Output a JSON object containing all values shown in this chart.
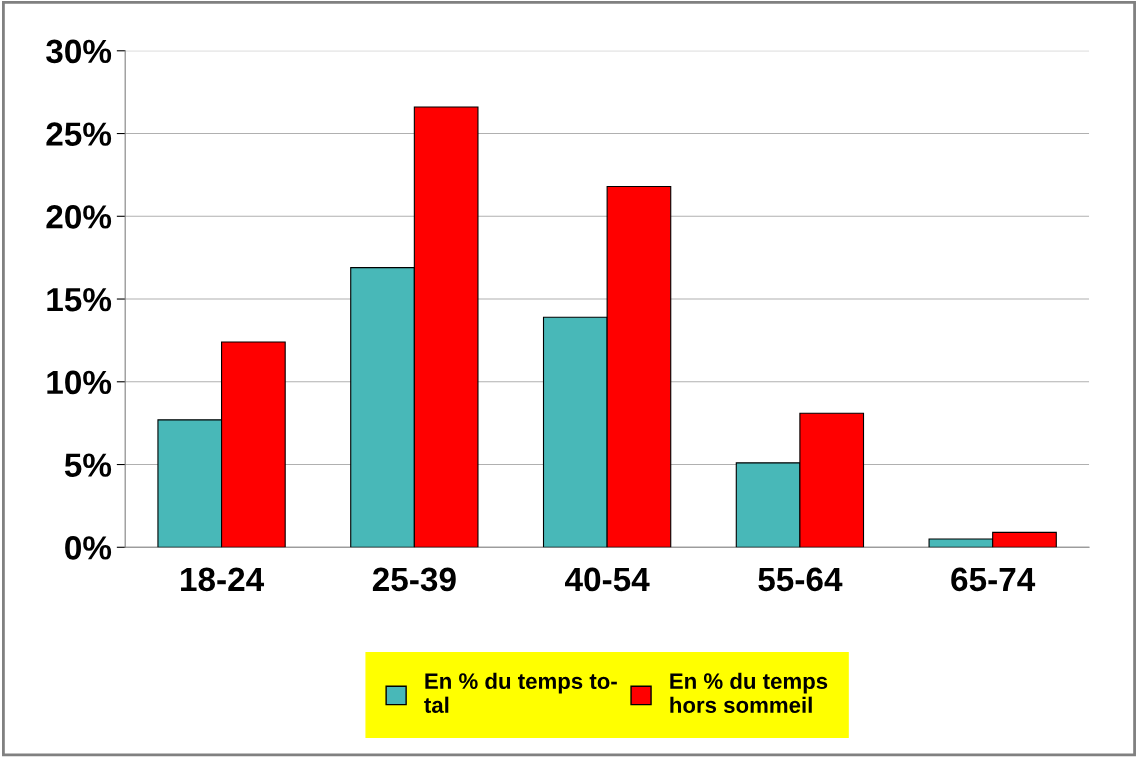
{
  "chart_data": {
    "type": "bar",
    "categories": [
      "18-24",
      "25-39",
      "40-54",
      "55-64",
      "65-74"
    ],
    "series": [
      {
        "name": "En % du temps to-\ntal",
        "color": "#48b8b8",
        "values": [
          7.7,
          16.9,
          13.9,
          5.1,
          0.5
        ]
      },
      {
        "name": "En % du temps\nhors sommeil",
        "color": "#ff0000",
        "values": [
          12.4,
          26.6,
          21.8,
          8.1,
          0.9
        ]
      }
    ],
    "ylim": [
      0,
      30
    ],
    "yticks": [
      {
        "value": 0,
        "label": "0%"
      },
      {
        "value": 5,
        "label": "5%"
      },
      {
        "value": 10,
        "label": "10%"
      },
      {
        "value": 15,
        "label": "15%"
      },
      {
        "value": 20,
        "label": "20%"
      },
      {
        "value": 25,
        "label": "25%"
      },
      {
        "value": 30,
        "label": "30%"
      }
    ],
    "grid": "y",
    "legend": "bottom"
  }
}
